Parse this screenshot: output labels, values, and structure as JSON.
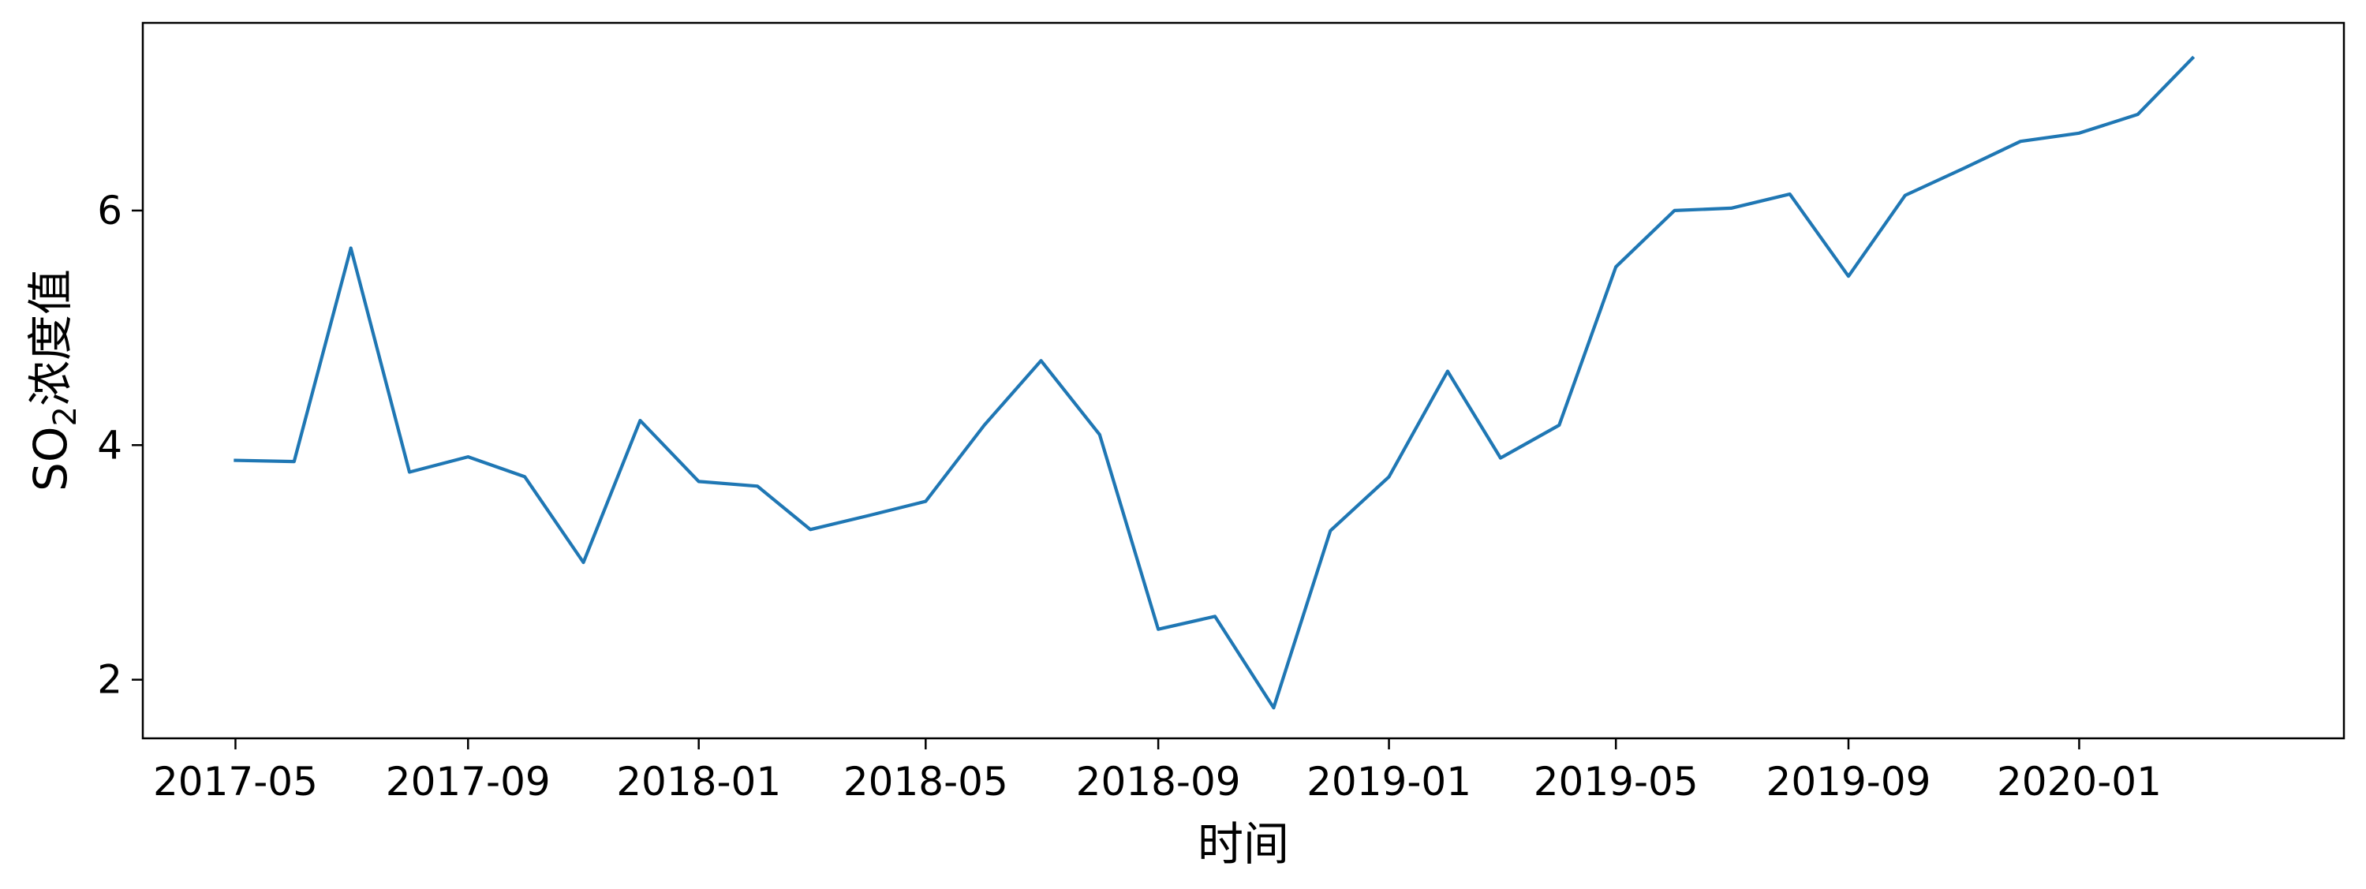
{
  "chart_data": {
    "type": "line",
    "title": "",
    "xlabel": "时间",
    "ylabel": {
      "prefix": "SO",
      "subscript": "2",
      "suffix": "浓度值"
    },
    "x": [
      "2017-05",
      "2017-06",
      "2017-07",
      "2017-08",
      "2017-09",
      "2017-10",
      "2017-11",
      "2017-12",
      "2018-01",
      "2018-02",
      "2018-03",
      "2018-04",
      "2018-05",
      "2018-06",
      "2018-07",
      "2018-08",
      "2018-09",
      "2018-10",
      "2018-11",
      "2018-12",
      "2019-01",
      "2019-02",
      "2019-03",
      "2019-04",
      "2019-05",
      "2019-06",
      "2019-07",
      "2019-08",
      "2019-09",
      "2019-10",
      "2019-11",
      "2019-12",
      "2020-01",
      "2020-02",
      "2020-03"
    ],
    "series": [
      {
        "values": [
          3.87,
          3.86,
          5.68,
          3.77,
          3.9,
          3.73,
          3.0,
          4.21,
          3.69,
          3.65,
          3.28,
          3.4,
          3.52,
          4.17,
          4.72,
          4.09,
          2.43,
          2.54,
          1.76,
          3.27,
          3.73,
          4.63,
          3.89,
          4.17,
          5.52,
          6.0,
          6.02,
          6.14,
          5.44,
          6.13,
          6.36,
          6.59,
          6.66,
          6.82,
          7.3
        ],
        "color": "#1f77b4"
      }
    ],
    "xticks": [
      "2017-05",
      "2017-09",
      "2018-01",
      "2018-05",
      "2018-09",
      "2019-01",
      "2019-05",
      "2019-09",
      "2020-01"
    ],
    "yticks": [
      2,
      4,
      6
    ],
    "xlim": [
      "2017-03-13",
      "2020-05-20"
    ],
    "ylim": [
      1.5,
      7.6
    ],
    "grid": false,
    "legend": "none"
  }
}
